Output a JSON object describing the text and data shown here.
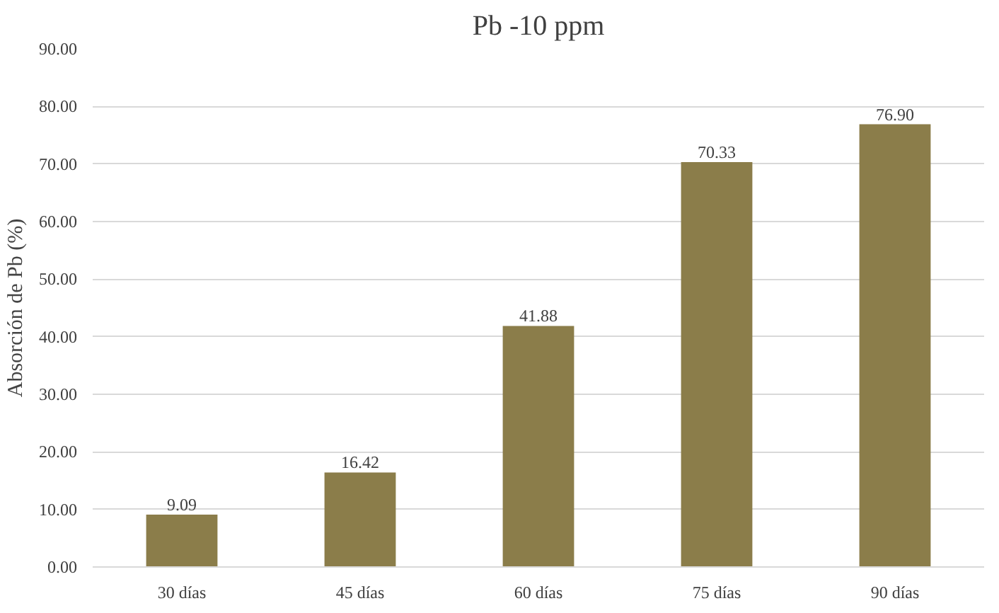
{
  "chart_data": {
    "type": "bar",
    "title": "Pb -10 ppm",
    "ylabel": "Absorción de Pb (%)",
    "categories": [
      "30 días",
      "45 días",
      "60 días",
      "75 días",
      "90 días"
    ],
    "values": [
      9.09,
      16.42,
      41.88,
      70.33,
      76.9
    ],
    "value_labels": [
      "9.09",
      "16.42",
      "41.88",
      "70.33",
      "76.90"
    ],
    "color": "#8b7d4a",
    "ylim": [
      0,
      90
    ],
    "yticks": [
      {
        "value": 0,
        "label": "0.00"
      },
      {
        "value": 10,
        "label": "10.00"
      },
      {
        "value": 20,
        "label": "20.00"
      },
      {
        "value": 30,
        "label": "30.00"
      },
      {
        "value": 40,
        "label": "40.00"
      },
      {
        "value": 50,
        "label": "50.00"
      },
      {
        "value": 60,
        "label": "60.00"
      },
      {
        "value": 70,
        "label": "70.00"
      },
      {
        "value": 80,
        "label": "80.00"
      },
      {
        "value": 90,
        "label": "90.00"
      }
    ],
    "grid": "y"
  }
}
